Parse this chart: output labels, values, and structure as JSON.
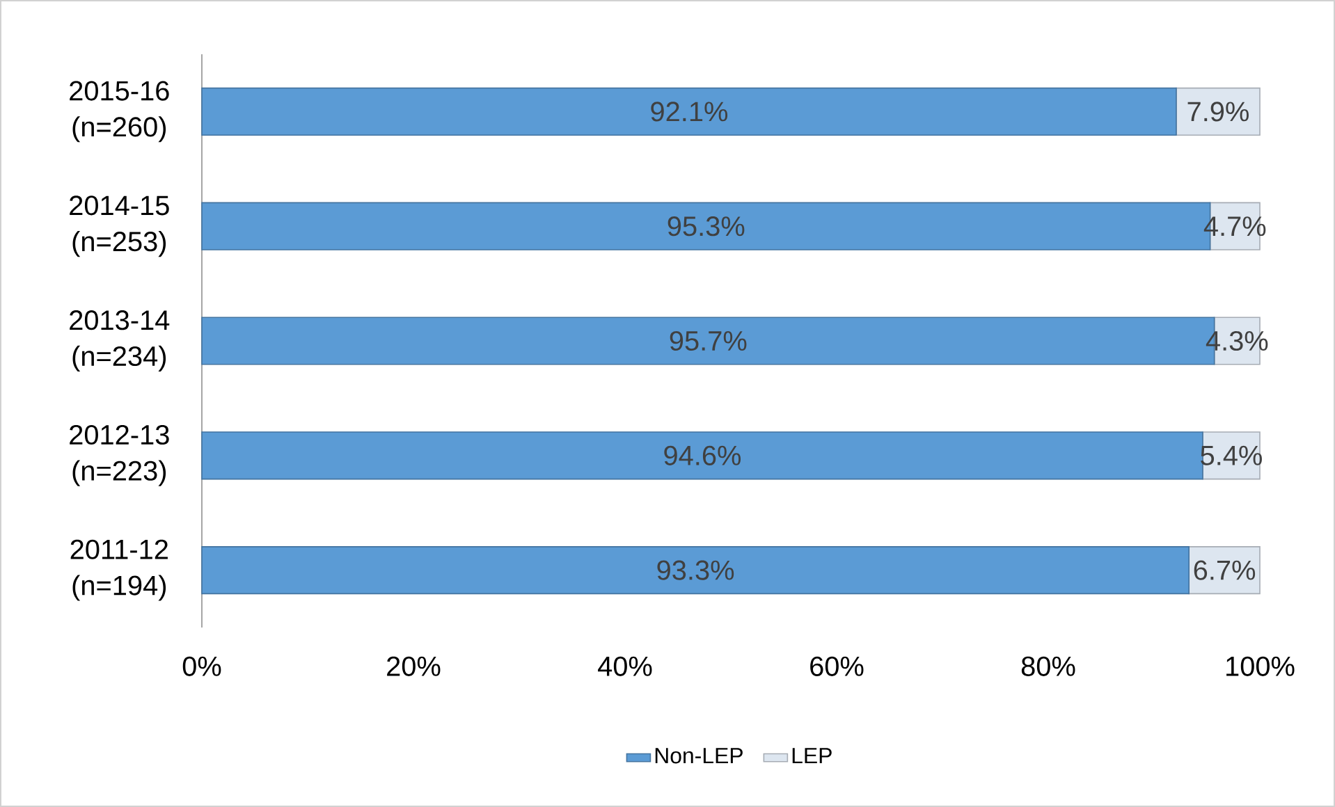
{
  "chart_data": {
    "type": "bar",
    "orientation": "horizontal",
    "stacked": true,
    "categories": [
      "2015-16 (n=260)",
      "2014-15 (n=253)",
      "2013-14 (n=234)",
      "2012-13 (n=223)",
      "2011-12 (n=194)"
    ],
    "series": [
      {
        "name": "Non-LEP",
        "color": "#5b9bd5",
        "values": [
          92.1,
          95.3,
          95.7,
          94.6,
          93.3
        ],
        "value_labels": [
          "92.1%",
          "95.3%",
          "95.7%",
          "94.6%",
          "93.3%"
        ]
      },
      {
        "name": "LEP",
        "color": "#dde6f0",
        "values": [
          7.9,
          4.7,
          4.3,
          5.4,
          6.7
        ],
        "value_labels": [
          "7.9%",
          "4.7%",
          "4.3%",
          "5.4%",
          "6.7%"
        ]
      }
    ],
    "xlim": [
      0,
      100
    ],
    "xticks": [
      {
        "value": 0,
        "label": "0%"
      },
      {
        "value": 20,
        "label": "20%"
      },
      {
        "value": 40,
        "label": "40%"
      },
      {
        "value": 60,
        "label": "60%"
      },
      {
        "value": 80,
        "label": "80%"
      },
      {
        "value": 100,
        "label": "100%"
      }
    ],
    "legend": "bottom"
  }
}
